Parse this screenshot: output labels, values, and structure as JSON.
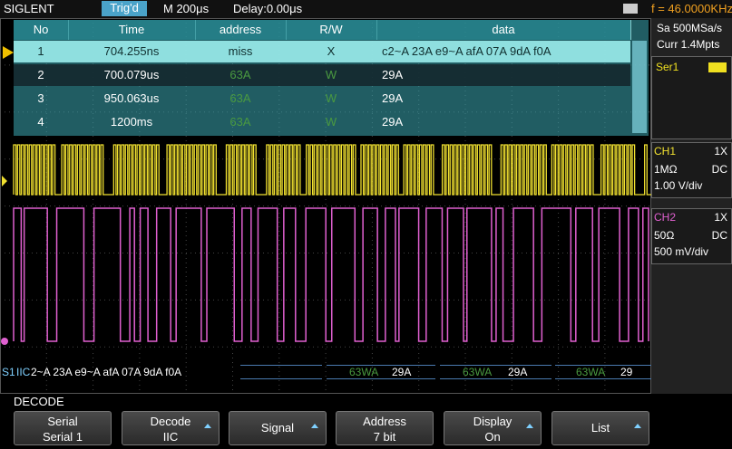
{
  "top_bar": {
    "brand": "SIGLENT",
    "trigger_status": "Trig'd",
    "timebase": "M 200μs",
    "delay": "Delay:0.00μs",
    "frequency": "f = 46.0000KHz"
  },
  "decode_table": {
    "columns": [
      "No",
      "Time",
      "address",
      "R/W",
      "data"
    ],
    "rows": [
      [
        "1",
        "704.255ns",
        "miss",
        "X",
        "c2~A 23A e9~A afA 07A 9dA f0A"
      ],
      [
        "2",
        "700.079us",
        "63A",
        "W",
        "29A"
      ],
      [
        "3",
        "950.063us",
        "63A",
        "W",
        "29A"
      ],
      [
        "4",
        "1200ms",
        "63A",
        "W",
        "29A"
      ]
    ]
  },
  "side_panel": {
    "sample_rate": "Sa 500MSa/s",
    "memory_depth": "Curr 1.4Mpts",
    "serial": "Ser1",
    "channels": [
      {
        "name": "CH1",
        "probe": "1X",
        "impedance": "1MΩ",
        "coupling": "DC",
        "scale": "1.00 V/div"
      },
      {
        "name": "CH2",
        "probe": "1X",
        "impedance": "50Ω",
        "coupling": "DC",
        "scale": "500 mV/div"
      }
    ]
  },
  "decode_bus": {
    "label": "S1",
    "protocol": "IIC",
    "frames": [
      "2~A 23A e9~A afA 07A 9dA f0A",
      "63WA",
      "29A",
      "63WA",
      "29A",
      "63WA",
      "29"
    ]
  },
  "menu": {
    "title": "DECODE",
    "softkeys": [
      {
        "label": "Serial",
        "value": "Serial 1"
      },
      {
        "label": "Decode",
        "value": "IIC"
      },
      {
        "label": "Signal"
      },
      {
        "label": "Address",
        "value": "7 bit"
      },
      {
        "label": "Display",
        "value": "On"
      },
      {
        "label": "List"
      }
    ]
  }
}
